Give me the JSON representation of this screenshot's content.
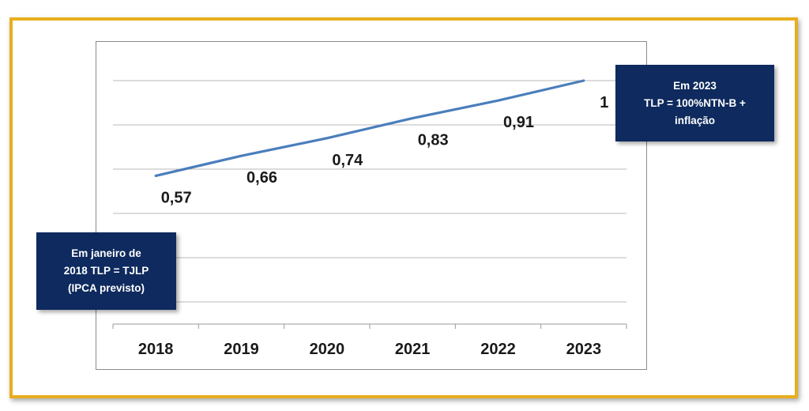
{
  "chart_data": {
    "type": "line",
    "categories": [
      "2018",
      "2019",
      "2020",
      "2021",
      "2022",
      "2023"
    ],
    "series": [
      {
        "values": [
          0.57,
          0.66,
          0.74,
          0.83,
          0.91,
          1
        ]
      }
    ],
    "data_labels": [
      "0,57",
      "0,66",
      "0,74",
      "0,83",
      "0,91",
      "1"
    ],
    "ylim": [
      -0.1,
      1.1
    ],
    "grid": true,
    "title": "",
    "xlabel": "",
    "ylabel": "",
    "line_color": "#4A7EBB"
  },
  "annotations": {
    "start": {
      "lines": [
        "Em janeiro de",
        "2018 TLP = TJLP",
        "(IPCA previsto)"
      ]
    },
    "end": {
      "lines": [
        "Em 2023",
        "TLP = 100%NTN-B +",
        "inflação"
      ]
    }
  },
  "colors": {
    "frame_border": "#E8AE1F",
    "callout_bg": "#0E2A5E",
    "gridline": "#B8B8B8"
  }
}
